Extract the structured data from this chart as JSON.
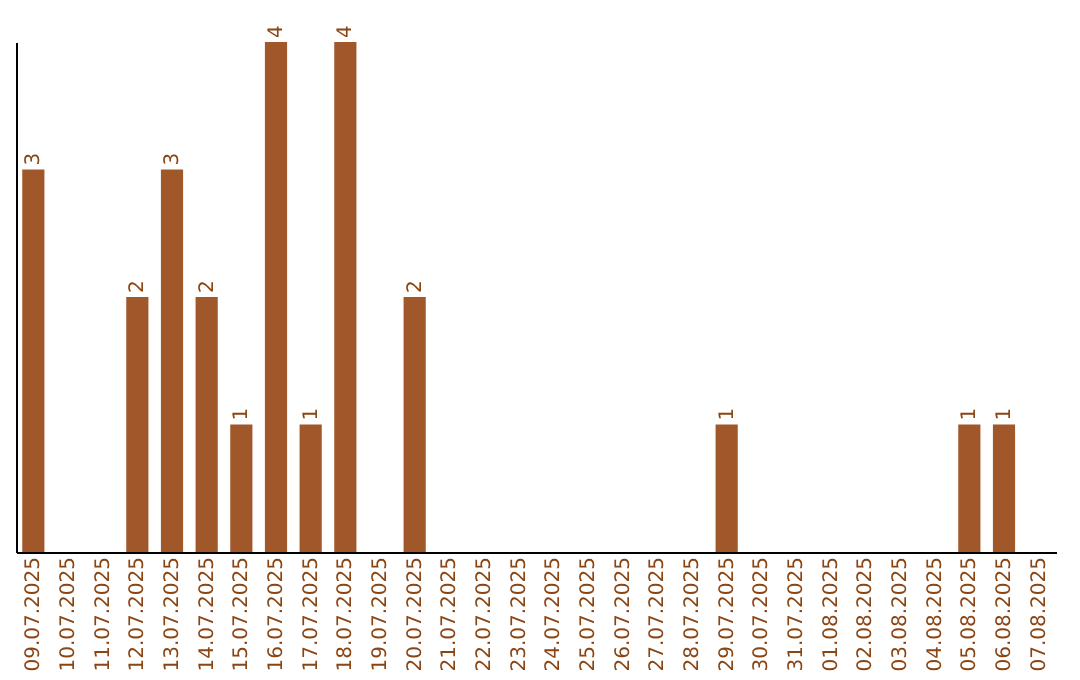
{
  "chart_data": {
    "type": "bar",
    "categories": [
      "09.07.2025",
      "10.07.2025",
      "11.07.2025",
      "12.07.2025",
      "13.07.2025",
      "14.07.2025",
      "15.07.2025",
      "16.07.2025",
      "17.07.2025",
      "18.07.2025",
      "19.07.2025",
      "20.07.2025",
      "21.07.2025",
      "22.07.2025",
      "23.07.2025",
      "24.07.2025",
      "25.07.2025",
      "26.07.2025",
      "27.07.2025",
      "28.07.2025",
      "29.07.2025",
      "30.07.2025",
      "31.07.2025",
      "01.08.2025",
      "02.08.2025",
      "03.08.2025",
      "04.08.2025",
      "05.08.2025",
      "06.08.2025",
      "07.08.2025"
    ],
    "values": [
      3,
      0,
      0,
      2,
      3,
      2,
      1,
      4,
      1,
      4,
      0,
      2,
      0,
      0,
      0,
      0,
      0,
      0,
      0,
      0,
      1,
      0,
      0,
      0,
      0,
      0,
      0,
      1,
      1,
      0
    ],
    "value_labels": [
      "3",
      null,
      null,
      "2",
      "3",
      "2",
      "1",
      "4",
      "1",
      "4",
      null,
      "2",
      null,
      null,
      null,
      null,
      null,
      null,
      null,
      null,
      "1",
      null,
      null,
      null,
      null,
      null,
      null,
      "1",
      "1",
      null
    ],
    "color": "#a0582b",
    "grid": false,
    "tick_labels": "x"
  }
}
